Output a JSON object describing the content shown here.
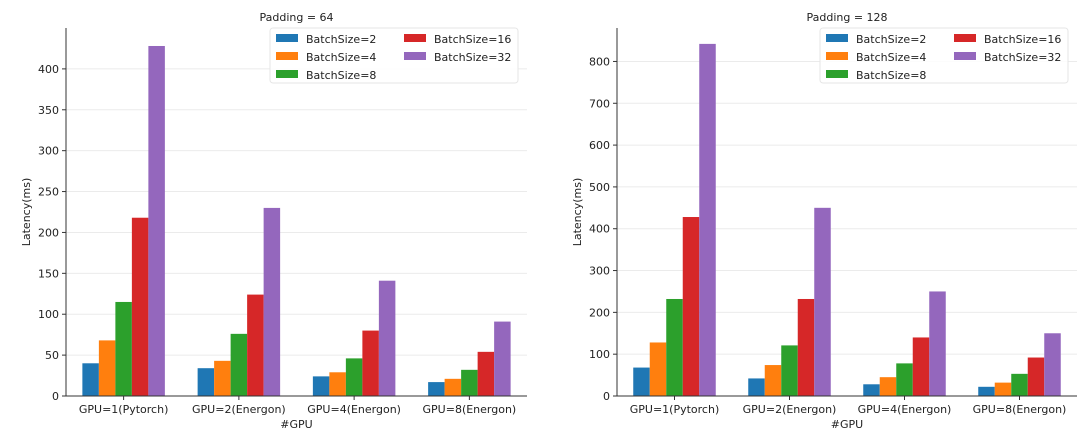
{
  "chart_data": [
    {
      "type": "bar",
      "title": "Padding = 64",
      "xlabel": "#GPU",
      "ylabel": "Latency(ms)",
      "categories": [
        "GPU=1(Pytorch)",
        "GPU=2(Energon)",
        "GPU=4(Energon)",
        "GPU=8(Energon)"
      ],
      "ylim": [
        0,
        450
      ],
      "yticks": [
        0,
        50,
        100,
        150,
        200,
        250,
        300,
        350,
        400
      ],
      "grid": true,
      "legend_position": "top-right",
      "series": [
        {
          "name": "BatchSize=2",
          "color": "#1f77b4",
          "values": [
            40,
            34,
            24,
            17
          ]
        },
        {
          "name": "BatchSize=4",
          "color": "#ff7f0e",
          "values": [
            68,
            43,
            29,
            21
          ]
        },
        {
          "name": "BatchSize=8",
          "color": "#2ca02c",
          "values": [
            115,
            76,
            46,
            32
          ]
        },
        {
          "name": "BatchSize=16",
          "color": "#d62728",
          "values": [
            218,
            124,
            80,
            54
          ]
        },
        {
          "name": "BatchSize=32",
          "color": "#9467bd",
          "values": [
            428,
            230,
            141,
            91
          ]
        }
      ]
    },
    {
      "type": "bar",
      "title": "Padding = 128",
      "xlabel": "#GPU",
      "ylabel": "Latency(ms)",
      "categories": [
        "GPU=1(Pytorch)",
        "GPU=2(Energon)",
        "GPU=4(Energon)",
        "GPU=8(Energon)"
      ],
      "ylim": [
        0,
        880
      ],
      "yticks": [
        0,
        100,
        200,
        300,
        400,
        500,
        600,
        700,
        800
      ],
      "grid": true,
      "legend_position": "top-right",
      "series": [
        {
          "name": "BatchSize=2",
          "color": "#1f77b4",
          "values": [
            68,
            42,
            28,
            22
          ]
        },
        {
          "name": "BatchSize=4",
          "color": "#ff7f0e",
          "values": [
            128,
            74,
            45,
            32
          ]
        },
        {
          "name": "BatchSize=8",
          "color": "#2ca02c",
          "values": [
            232,
            121,
            78,
            53
          ]
        },
        {
          "name": "BatchSize=16",
          "color": "#d62728",
          "values": [
            428,
            232,
            140,
            92
          ]
        },
        {
          "name": "BatchSize=32",
          "color": "#9467bd",
          "values": [
            842,
            450,
            250,
            150
          ]
        }
      ]
    }
  ]
}
